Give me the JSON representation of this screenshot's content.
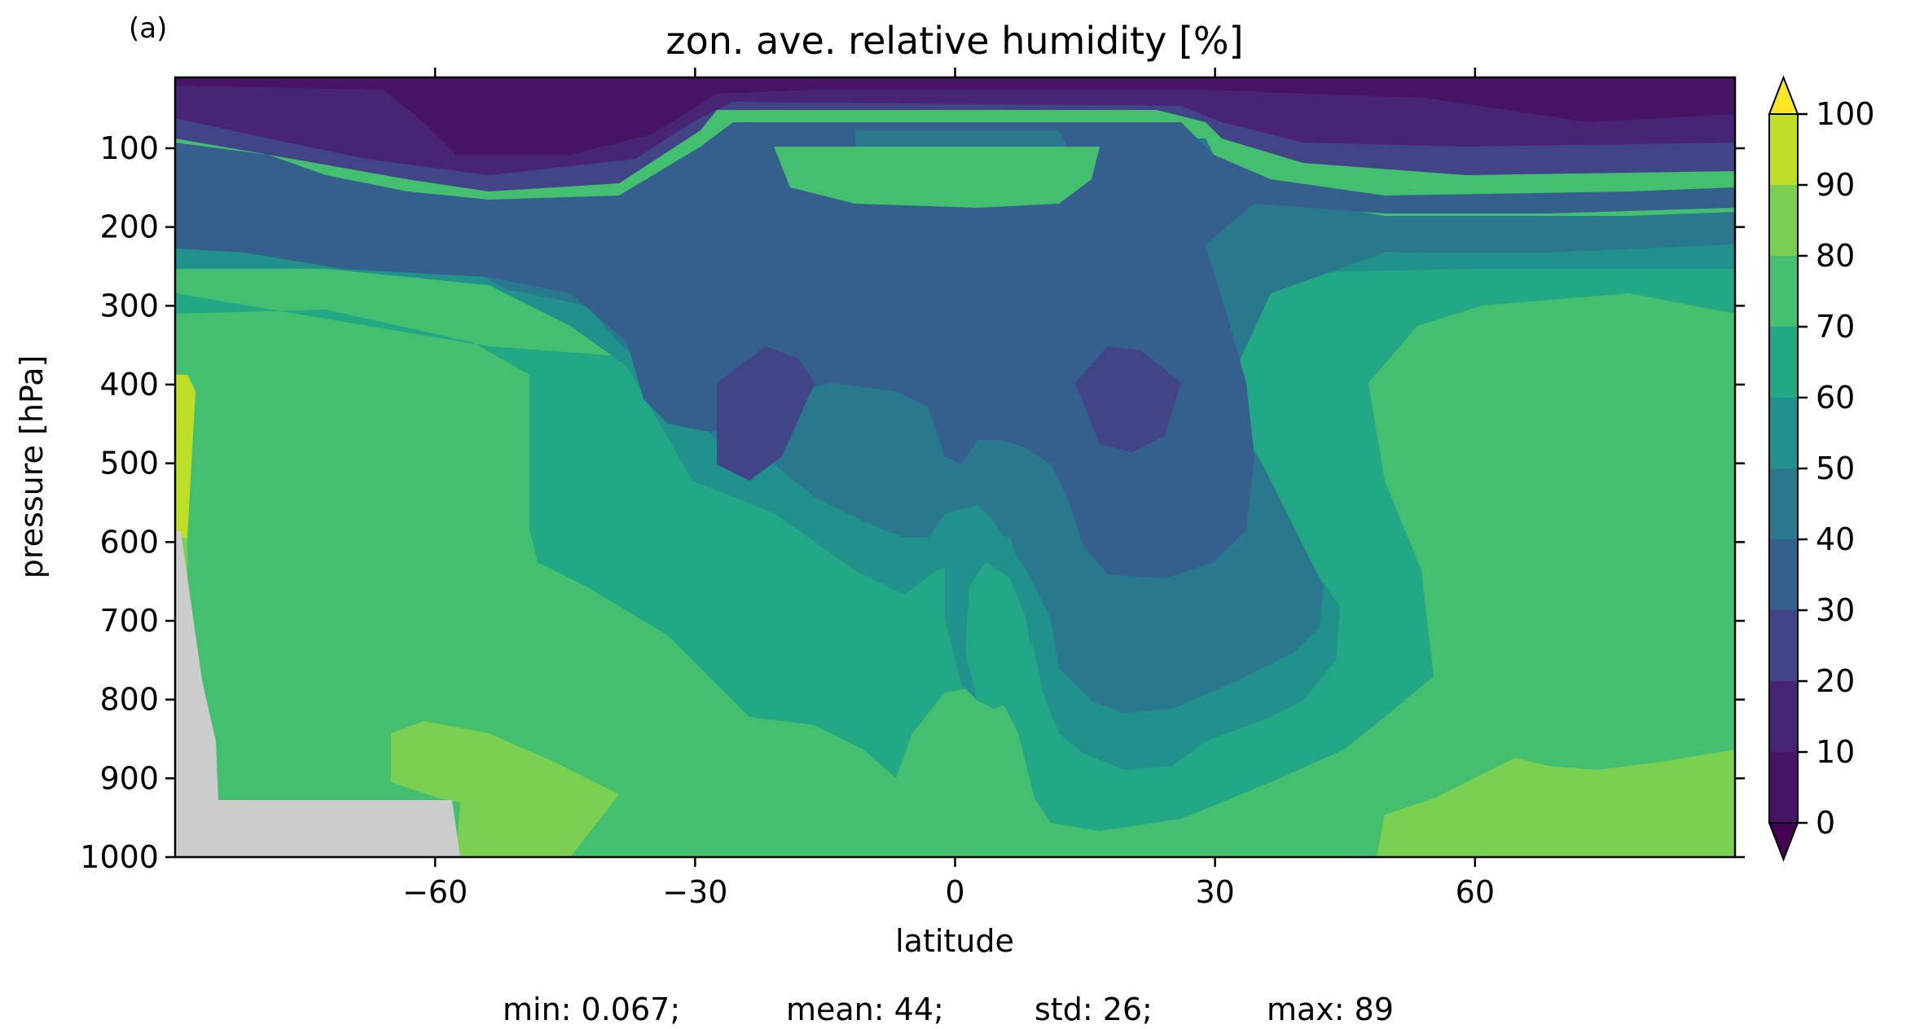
{
  "panel_label": "(a)",
  "chart_data": {
    "type": "heatmap",
    "title": "zon. ave. relative humidity [%]",
    "xlabel": "latitude",
    "ylabel": "pressure [hPa]",
    "xlim": [
      -90,
      90
    ],
    "ylim": [
      1000,
      10
    ],
    "x_ticks": [
      -60,
      -30,
      0,
      30,
      60
    ],
    "x_tick_labels": [
      "−60",
      "−30",
      "0",
      "30",
      "60"
    ],
    "y_ticks": [
      100,
      200,
      300,
      400,
      500,
      600,
      700,
      800,
      900,
      1000
    ],
    "y_tick_labels": [
      "100",
      "200",
      "300",
      "400",
      "500",
      "600",
      "700",
      "800",
      "900",
      "1000"
    ],
    "colorbar": {
      "levels": [
        0,
        10,
        20,
        30,
        40,
        50,
        60,
        70,
        80,
        90,
        100
      ],
      "tick_labels": [
        "0",
        "10",
        "20",
        "30",
        "40",
        "50",
        "60",
        "70",
        "80",
        "90",
        "100"
      ],
      "colors": [
        "#471365",
        "#482475",
        "#414487",
        "#355f8d",
        "#2a788e",
        "#21918c",
        "#22a884",
        "#44bf70",
        "#7ad151",
        "#bddf26"
      ],
      "extend_low_color": "#440154",
      "extend_high_color": "#fde725"
    },
    "missing_color": "#cccccc",
    "stats": {
      "min": "min: 0.067;",
      "mean": "mean: 44;",
      "std": "std: 26;",
      "max": "max: 89"
    }
  }
}
